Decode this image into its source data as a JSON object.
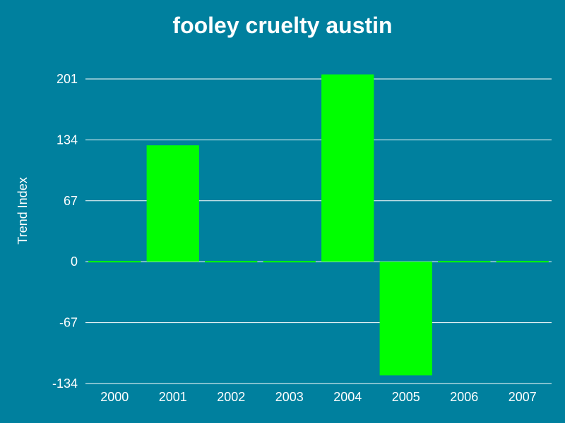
{
  "chart_data": {
    "type": "bar",
    "title": "fooley cruelty austin",
    "xlabel": "",
    "ylabel": "Trend Index",
    "categories": [
      "2000",
      "2001",
      "2002",
      "2003",
      "2004",
      "2005",
      "2006",
      "2007"
    ],
    "values": [
      0,
      128,
      0,
      0,
      206,
      -125,
      0,
      0
    ],
    "ylim": [
      -134,
      201
    ],
    "yticks": [
      201,
      134,
      67,
      0,
      -67,
      -134
    ],
    "grid": true,
    "legend": "none",
    "colors": {
      "background": "#00809e",
      "bar": "#00ff00",
      "text": "#ffffff",
      "grid": "#ffffff"
    }
  }
}
